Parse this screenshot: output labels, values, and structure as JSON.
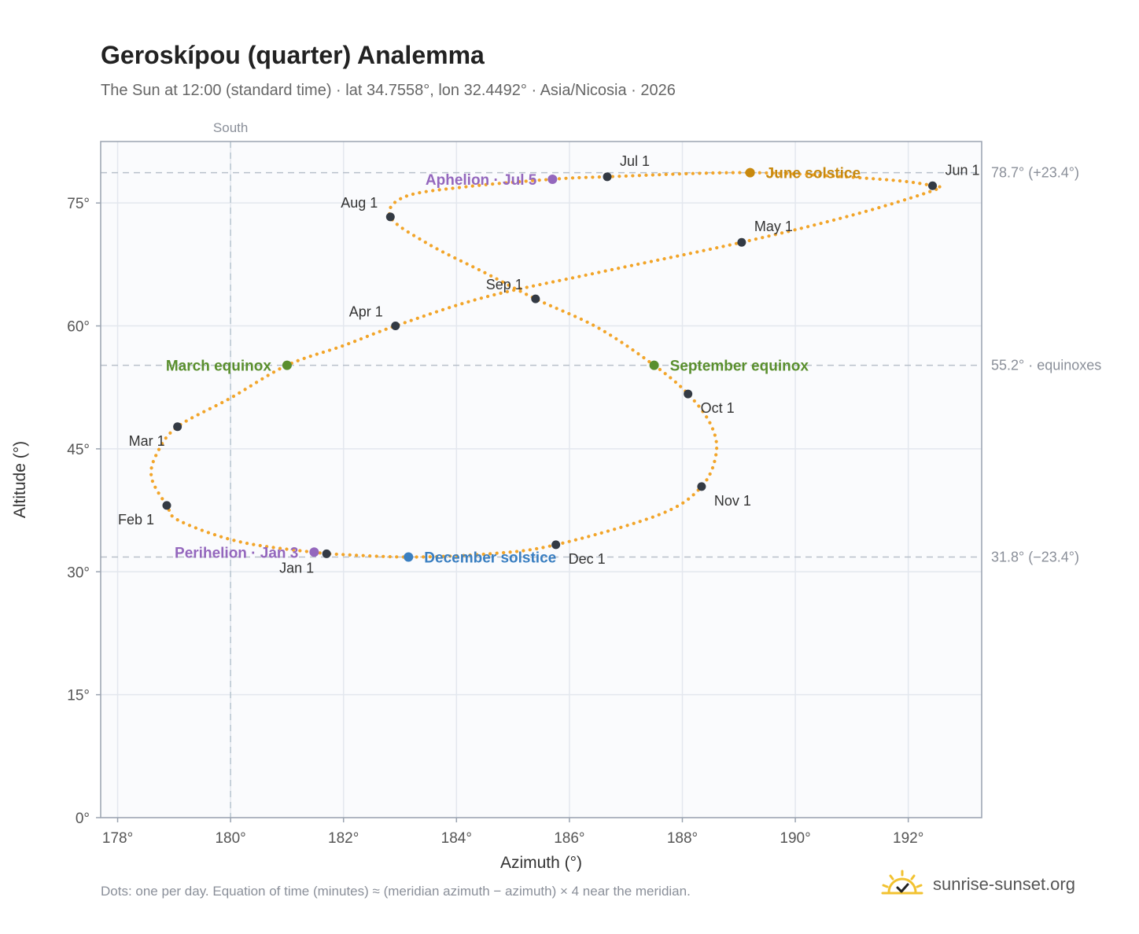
{
  "page": {
    "title": "Geroskípou (quarter) Analemma",
    "subtitle": "The Sun at 12:00 (standard time) · lat 34.7558°, lon 32.4492° · Asia/Nicosia · 2026",
    "footnote": "Dots: one per day. Equation of time (minutes) ≈ (meridian azimuth − azimuth) × 4 near the meridian.",
    "brand": "sunrise-sunset.org"
  },
  "colors": {
    "curve": "#f2a52a",
    "month_dot": "#333a44",
    "june_solstice": "#c8890e",
    "december_solstice": "#3a7fc1",
    "equinox": "#5a8f2e",
    "apsis": "#9467bd",
    "brand_sun": "#f2c230"
  },
  "chart_data": {
    "type": "scatter",
    "xlabel": "Azimuth (°)",
    "ylabel": "Altitude (°)",
    "xlim": [
      177.7,
      193.3
    ],
    "ylim": [
      0,
      82.5
    ],
    "xticks": [
      178,
      180,
      182,
      184,
      186,
      188,
      190,
      192
    ],
    "yticks": [
      0,
      15,
      30,
      45,
      60,
      75
    ],
    "grid": true,
    "meridian": {
      "azimuth": 180,
      "label": "South"
    },
    "reference_lines": [
      {
        "altitude": 78.7,
        "label": "78.7° (+23.4°)"
      },
      {
        "altitude": 55.2,
        "label": "55.2° · equinoxes"
      },
      {
        "altitude": 31.8,
        "label": "31.8° (−23.4°)"
      }
    ],
    "curve_points": [
      [
        181.7,
        32.2
      ],
      [
        180.2,
        33.6
      ],
      [
        179.1,
        36.2
      ],
      [
        178.87,
        38.1
      ],
      [
        178.6,
        41.5
      ],
      [
        178.7,
        44.5
      ],
      [
        179.06,
        47.7
      ],
      [
        180.0,
        51.2
      ],
      [
        181.0,
        55.2
      ],
      [
        182.0,
        57.6
      ],
      [
        182.92,
        60.0
      ],
      [
        184.5,
        63.5
      ],
      [
        186.5,
        66.5
      ],
      [
        189.05,
        70.2
      ],
      [
        191.0,
        73.5
      ],
      [
        192.43,
        76.5
      ],
      [
        192.43,
        77.1
      ],
      [
        191.5,
        77.9
      ],
      [
        189.2,
        78.7
      ],
      [
        186.67,
        78.2
      ],
      [
        185.7,
        77.9
      ],
      [
        184.2,
        77.0
      ],
      [
        183.1,
        75.8
      ],
      [
        182.83,
        73.3
      ],
      [
        183.5,
        70.0
      ],
      [
        184.5,
        66.5
      ],
      [
        185.4,
        63.3
      ],
      [
        186.5,
        59.8
      ],
      [
        187.5,
        55.2
      ],
      [
        188.1,
        51.7
      ],
      [
        188.5,
        48.0
      ],
      [
        188.6,
        44.5
      ],
      [
        188.34,
        40.4
      ],
      [
        187.6,
        37.0
      ],
      [
        185.76,
        33.3
      ],
      [
        184.6,
        32.2
      ],
      [
        183.15,
        31.8
      ],
      [
        181.7,
        32.2
      ]
    ],
    "month_markers": [
      {
        "label": "Jan 1",
        "az": 181.7,
        "alt": 32.2,
        "pos": "below-left"
      },
      {
        "label": "Feb 1",
        "az": 178.87,
        "alt": 38.1,
        "pos": "below-left"
      },
      {
        "label": "Mar 1",
        "az": 179.06,
        "alt": 47.7,
        "pos": "below-left"
      },
      {
        "label": "Apr 1",
        "az": 182.92,
        "alt": 60.0,
        "pos": "above-left"
      },
      {
        "label": "May 1",
        "az": 189.05,
        "alt": 70.2,
        "pos": "above-right"
      },
      {
        "label": "Jun 1",
        "az": 192.43,
        "alt": 77.1,
        "pos": "above-right"
      },
      {
        "label": "Jul 1",
        "az": 186.67,
        "alt": 78.2,
        "pos": "above-right"
      },
      {
        "label": "Aug 1",
        "az": 182.83,
        "alt": 73.3,
        "pos": "above-left"
      },
      {
        "label": "Sep 1",
        "az": 185.4,
        "alt": 63.3,
        "pos": "above-left"
      },
      {
        "label": "Oct 1",
        "az": 188.1,
        "alt": 51.7,
        "pos": "below-right"
      },
      {
        "label": "Nov 1",
        "az": 188.34,
        "alt": 40.4,
        "pos": "below-right"
      },
      {
        "label": "Dec 1",
        "az": 185.76,
        "alt": 33.3,
        "pos": "below-right"
      }
    ],
    "events": [
      {
        "label": "June solstice",
        "az": 189.2,
        "alt": 78.7,
        "color_key": "june_solstice",
        "side": "right"
      },
      {
        "label": "December solstice",
        "az": 183.15,
        "alt": 31.8,
        "color_key": "december_solstice",
        "side": "right"
      },
      {
        "label": "March equinox",
        "az": 181.0,
        "alt": 55.2,
        "color_key": "equinox",
        "side": "left"
      },
      {
        "label": "September equinox",
        "az": 187.5,
        "alt": 55.2,
        "color_key": "equinox",
        "side": "right"
      },
      {
        "label": "Aphelion · Jul 5",
        "az": 185.7,
        "alt": 77.9,
        "color_key": "apsis",
        "side": "left"
      },
      {
        "label": "Perihelion · Jan 3",
        "az": 181.48,
        "alt": 32.4,
        "color_key": "apsis",
        "side": "left"
      }
    ]
  }
}
